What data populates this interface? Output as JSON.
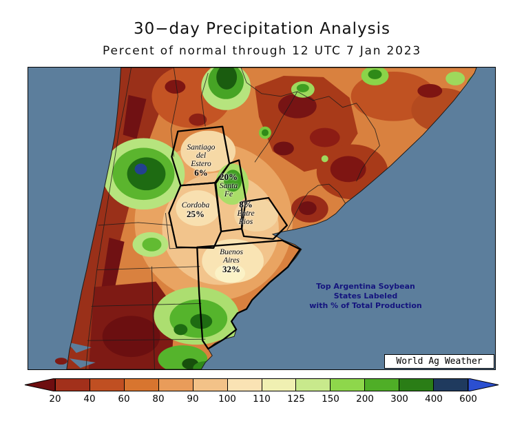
{
  "title": "30−day Precipitation Analysis",
  "subtitle": "Percent of normal through 12 UTC 7 Jan 2023",
  "map": {
    "provinces": [
      {
        "name1": "Santiago",
        "name2": "del",
        "name3": "Estero",
        "pct": "6%"
      },
      {
        "pct": "20%",
        "name1": "Santa",
        "name2": "Fe"
      },
      {
        "name1": "Cordoba",
        "pct": "25%"
      },
      {
        "pct": "8%",
        "name1": "Entre",
        "name2": "Rios"
      },
      {
        "name1": "Buenos",
        "name2": "Aires",
        "pct": "32%"
      }
    ],
    "annotation": {
      "line1": "Top Argentina Soybean",
      "line2": "States Labeled",
      "line3": "with % of Total Production"
    },
    "credit": "World Ag Weather"
  },
  "colors": {
    "ocean": "#5C7E9C",
    "land_base": "#D9813F",
    "annotation_text": "#14147E",
    "border_lines": "#000000"
  },
  "colorbar": {
    "labels": [
      "20",
      "40",
      "60",
      "80",
      "90",
      "100",
      "110",
      "125",
      "150",
      "200",
      "300",
      "400",
      "600"
    ],
    "segments": [
      "#A2301B",
      "#C04F22",
      "#D8752F",
      "#E99C5A",
      "#F3C288",
      "#FAE3B4",
      "#F0F0B2",
      "#C8E98C",
      "#8ED74B",
      "#4FAE27",
      "#2A7D16",
      "#1F3A5E"
    ],
    "left_arrow_color": "#6E0E10",
    "right_arrow_color": "#2B4FD0"
  }
}
